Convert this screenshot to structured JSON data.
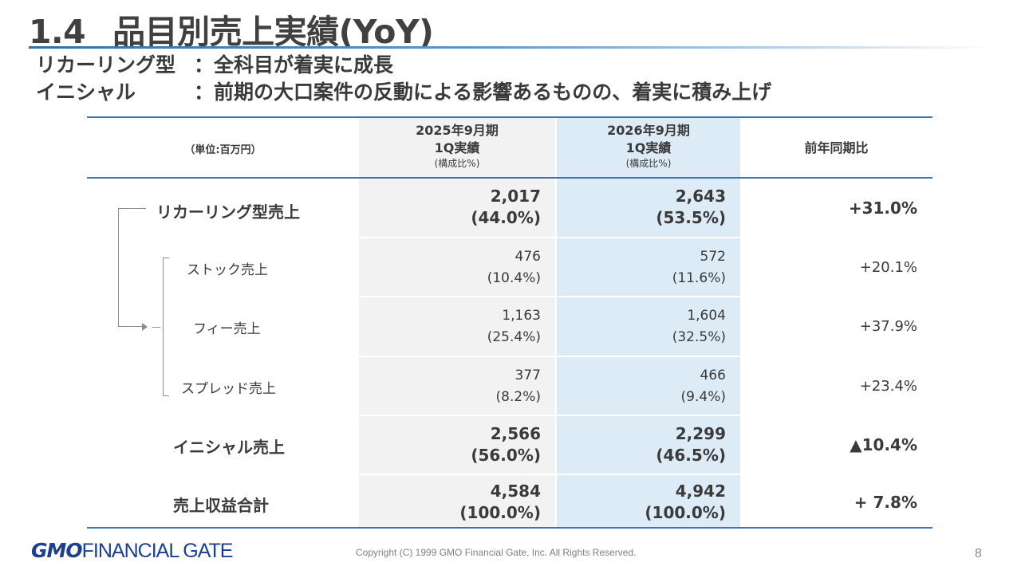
{
  "title": {
    "number": "1.4",
    "text": "品目別売上実績(YoY)"
  },
  "subtitles": [
    {
      "label": "リカーリング型",
      "colon": "：",
      "text": "全科目が着実に成長"
    },
    {
      "label": "イニシャル",
      "colon": "：",
      "text": "前期の大口案件の反動による影響あるものの、着実に積み上げ"
    }
  ],
  "table": {
    "unit_label": "（単位:百万円）",
    "col_2025": {
      "line1": "2025年9月期",
      "line2": "1Q実績",
      "line3": "(構成比%)"
    },
    "col_2026": {
      "line1": "2026年9月期",
      "line2": "1Q実績",
      "line3": "(構成比%)"
    },
    "col_yoy": "前年同期比",
    "rows": [
      {
        "label": "リカーリング型売上",
        "v2025": "2,017",
        "p2025": "(44.0%)",
        "v2026": "2,643",
        "p2026": "(53.5%)",
        "yoy": "+31.0%"
      },
      {
        "label": "ストック売上",
        "v2025": "476",
        "p2025": "(10.4%)",
        "v2026": "572",
        "p2026": "(11.6%)",
        "yoy": "+20.1%"
      },
      {
        "label": "フィー売上",
        "v2025": "1,163",
        "p2025": "(25.4%)",
        "v2026": "1,604",
        "p2026": "(32.5%)",
        "yoy": "+37.9%"
      },
      {
        "label": "スプレッド売上",
        "v2025": "377",
        "p2025": "(8.2%)",
        "v2026": "466",
        "p2026": "(9.4%)",
        "yoy": "+23.4%"
      },
      {
        "label": "イニシャル売上",
        "v2025": "2,566",
        "p2025": "(56.0%)",
        "v2026": "2,299",
        "p2026": "(46.5%)",
        "yoy": "▲10.4%"
      },
      {
        "label": "売上収益合計",
        "v2025": "4,584",
        "p2025": "(100.0%)",
        "v2026": "4,942",
        "p2026": "(100.0%)",
        "yoy": "+ 7.8%"
      }
    ]
  },
  "footer": {
    "logo_gmo": "GMO",
    "logo_text": "FINANCIAL GATE",
    "copyright": "Copyright (C) 1999 GMO Financial Gate, Inc. All Rights Reserved.",
    "page": "8"
  },
  "colors": {
    "accent": "#3b73b5",
    "col2025_bg": "#f2f2f2",
    "col2026_bg": "#ddebf7",
    "logo": "#1d3f8f"
  }
}
